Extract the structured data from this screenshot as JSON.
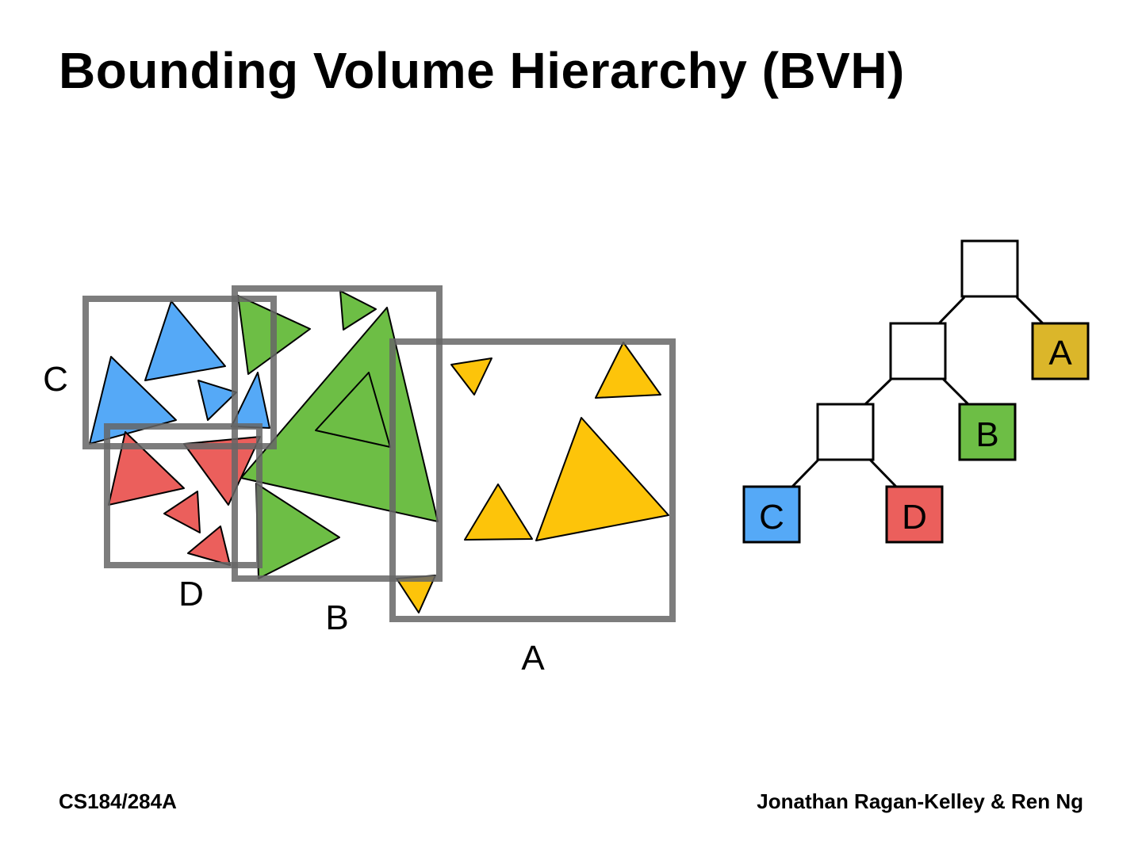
{
  "slide": {
    "title": "Bounding Volume Hierarchy (BVH)",
    "footer_left": "CS184/284A",
    "footer_right": "Jonathan Ragan-Kelley & Ren Ng"
  },
  "scene": {
    "box_labels": {
      "c": "C",
      "d": "D",
      "b": "B",
      "a": "A"
    }
  },
  "tree": {
    "leaves": {
      "a": "A",
      "b": "B",
      "c": "C",
      "d": "D"
    }
  },
  "colors": {
    "blue": "#55a9f7",
    "red": "#eb5f5c",
    "green": "#6dbe45",
    "yellow": "#fdc40a",
    "tree_a": "#dbb62a",
    "box_stroke": "#666666"
  }
}
